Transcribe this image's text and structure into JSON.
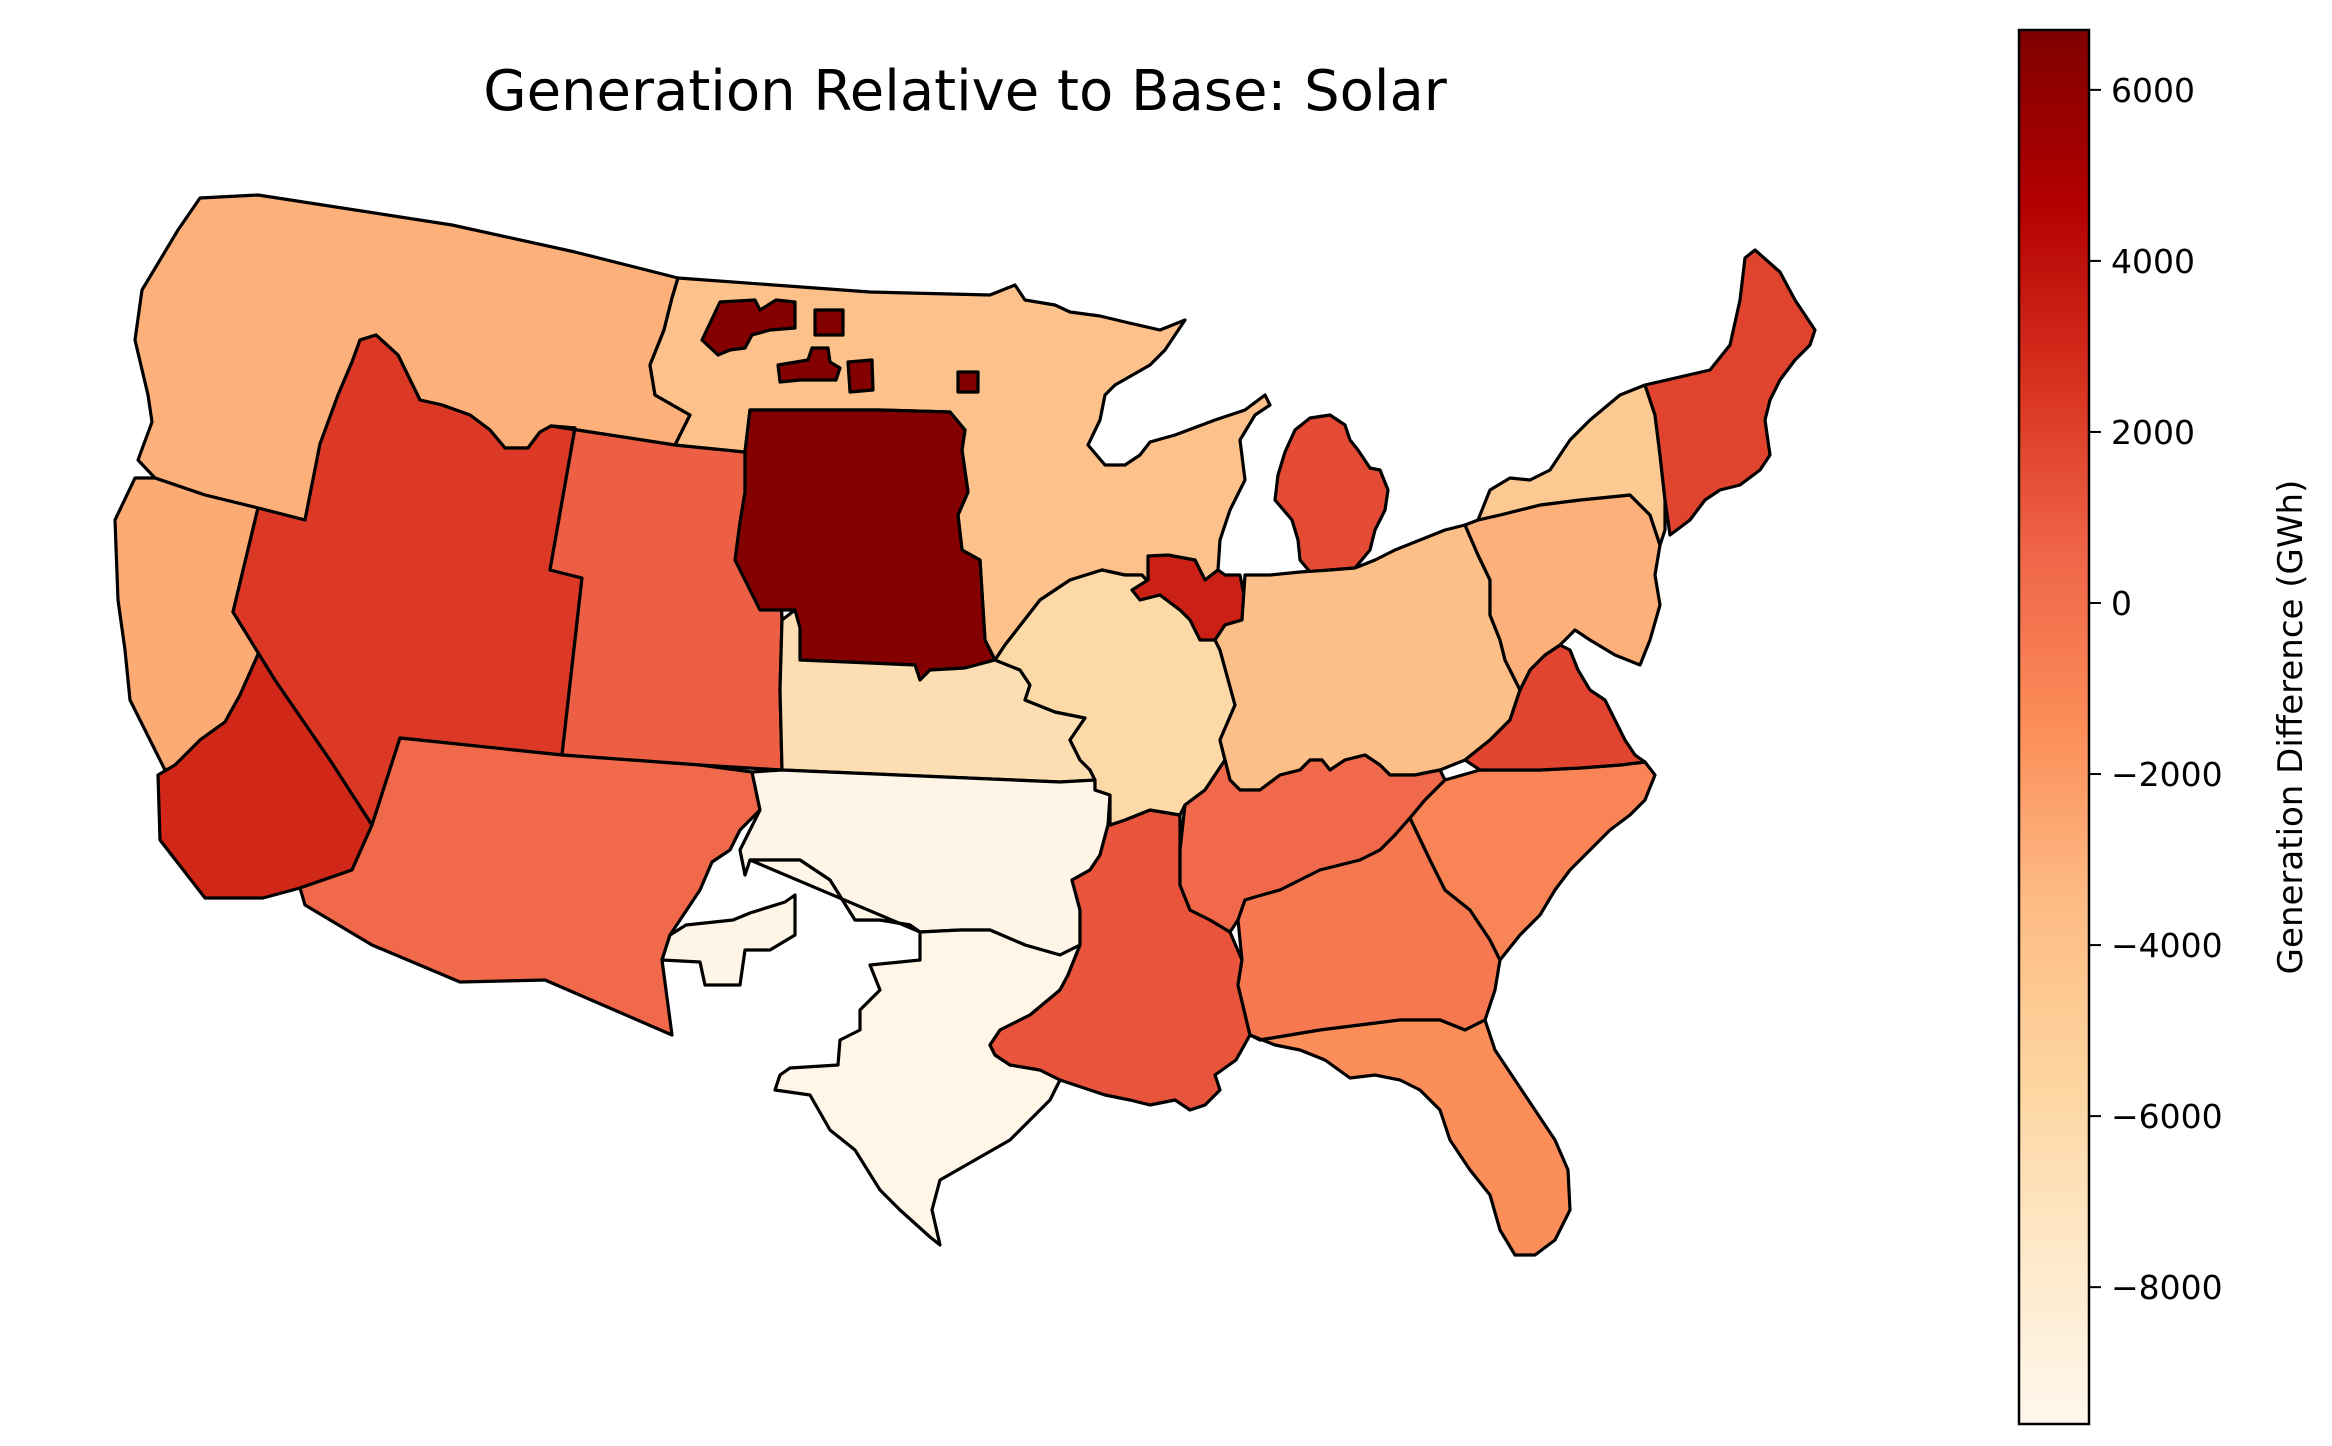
{
  "chart_data": {
    "type": "choropleth",
    "title": "Generation Relative to Base: Solar",
    "colorbar": {
      "label": "Generation Difference (GWh)",
      "colormap": "OrRd",
      "range": [
        -9600,
        6700
      ],
      "ticks": [
        {
          "value": 6000,
          "label": "6000"
        },
        {
          "value": 4000,
          "label": "4000"
        },
        {
          "value": 2000,
          "label": "2000"
        },
        {
          "value": 0,
          "label": "0"
        },
        {
          "value": -2000,
          "label": "−2000"
        },
        {
          "value": -4000,
          "label": "−4000"
        },
        {
          "value": -6000,
          "label": "−6000"
        },
        {
          "value": -8000,
          "label": "−8000"
        }
      ],
      "color_stops": [
        "#fff7ec",
        "#fee8c8",
        "#fdd49e",
        "#fdbb84",
        "#fc8d59",
        "#ef6548",
        "#d7301f",
        "#b30000",
        "#7f0000"
      ]
    },
    "regions": [
      {
        "id": "pacific-northwest",
        "value": -3000
      },
      {
        "id": "california-north",
        "value": -2800
      },
      {
        "id": "california-south",
        "value": 3000
      },
      {
        "id": "great-basin",
        "value": 2300
      },
      {
        "id": "rockies",
        "value": 800
      },
      {
        "id": "southwest",
        "value": 400
      },
      {
        "id": "rio-grande",
        "value": -9300
      },
      {
        "id": "northern-plains",
        "value": -4000
      },
      {
        "id": "central-plains",
        "value": 6500
      },
      {
        "id": "kansas-region",
        "value": -6500
      },
      {
        "id": "southern-plains",
        "value": -9300
      },
      {
        "id": "texas",
        "value": -9400
      },
      {
        "id": "lower-mississippi",
        "value": 1200
      },
      {
        "id": "mid-mississippi",
        "value": -6000
      },
      {
        "id": "northern-illinois",
        "value": 3300
      },
      {
        "id": "michigan",
        "value": 1600
      },
      {
        "id": "ohio-valley",
        "value": -3800
      },
      {
        "id": "tennessee-valley",
        "value": 400
      },
      {
        "id": "southeast",
        "value": -400
      },
      {
        "id": "carolinas",
        "value": -1000
      },
      {
        "id": "florida",
        "value": -1500
      },
      {
        "id": "virginia",
        "value": 1800
      },
      {
        "id": "pjm-east",
        "value": -3000
      },
      {
        "id": "new-york",
        "value": -4600
      },
      {
        "id": "new-england",
        "value": 1900
      },
      {
        "id": "nd-patches",
        "value": 6500
      }
    ]
  }
}
